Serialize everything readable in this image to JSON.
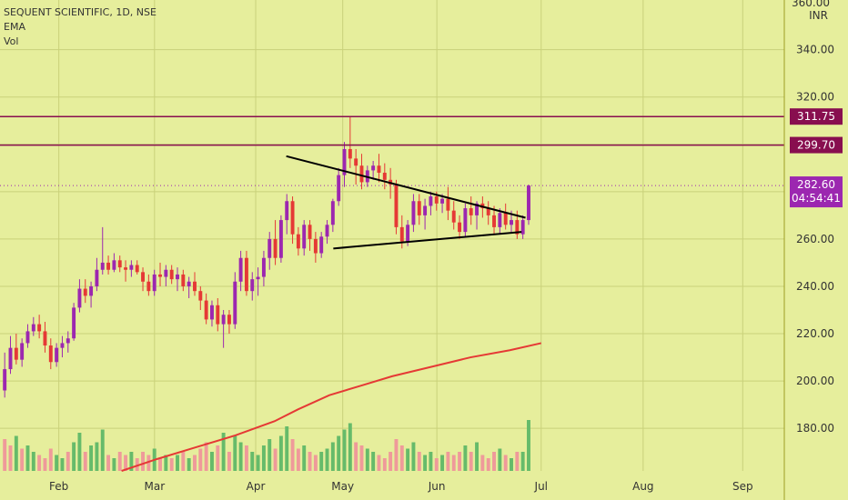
{
  "legend": {
    "symbol": "SEQUENT SCIENTIFIC, 1D, NSE",
    "indicator_1": "EMA",
    "indicator_2": "Vol"
  },
  "axis": {
    "currency": "INR",
    "top_partial": "360.00"
  },
  "colors": {
    "background": "#e6ee9c",
    "up_candle": "#9c27b0",
    "down_candle": "#e53935",
    "up_volume": "#66bb6a",
    "down_volume": "#ef9a9a",
    "ema": "#e53935",
    "level_line": "#880e4f",
    "trendline": "#000000",
    "price_label": "#9c27b0"
  },
  "price_labels": {
    "current_price": "282.60",
    "countdown": "04:54:41",
    "level_1": "311.75",
    "level_2": "299.70"
  },
  "chart_data": {
    "type": "candlestick",
    "title": "SEQUENT SCIENTIFIC, 1D, NSE",
    "y_ticks": [
      "180.00",
      "200.00",
      "220.00",
      "240.00",
      "260.00",
      "280.00",
      "300.00",
      "320.00",
      "340.00"
    ],
    "x_ticks": [
      "Feb",
      "Mar",
      "Apr",
      "May",
      "Jun",
      "Jul",
      "Aug",
      "Sep"
    ],
    "ylim": [
      162,
      361
    ],
    "horizontal_levels": [
      311.75,
      299.7
    ],
    "candles": [
      [
        196,
        212,
        193,
        205
      ],
      [
        205,
        219,
        203,
        214
      ],
      [
        214,
        220,
        207,
        209
      ],
      [
        209,
        218,
        206,
        216
      ],
      [
        216,
        224,
        214,
        221
      ],
      [
        221,
        227,
        219,
        224
      ],
      [
        224,
        228,
        218,
        221
      ],
      [
        221,
        225,
        212,
        215
      ],
      [
        215,
        218,
        205,
        208
      ],
      [
        208,
        216,
        206,
        214
      ],
      [
        214,
        219,
        210,
        216
      ],
      [
        216,
        221,
        212,
        218
      ],
      [
        218,
        233,
        217,
        231
      ],
      [
        231,
        243,
        229,
        239
      ],
      [
        239,
        243,
        233,
        236
      ],
      [
        236,
        242,
        231,
        240
      ],
      [
        240,
        252,
        238,
        247
      ],
      [
        247,
        265,
        245,
        250
      ],
      [
        250,
        253,
        245,
        247
      ],
      [
        247,
        254,
        246,
        251
      ],
      [
        251,
        253,
        246,
        248
      ],
      [
        248,
        251,
        242,
        247
      ],
      [
        247,
        251,
        244,
        249
      ],
      [
        249,
        251,
        245,
        246
      ],
      [
        246,
        248,
        238,
        242
      ],
      [
        242,
        245,
        236,
        238
      ],
      [
        238,
        247,
        236,
        245
      ],
      [
        245,
        250,
        240,
        244
      ],
      [
        244,
        249,
        240,
        247
      ],
      [
        247,
        249,
        241,
        243
      ],
      [
        243,
        248,
        238,
        245
      ],
      [
        245,
        247,
        238,
        240
      ],
      [
        240,
        244,
        235,
        242
      ],
      [
        242,
        246,
        236,
        238
      ],
      [
        238,
        240,
        230,
        234
      ],
      [
        234,
        237,
        224,
        226
      ],
      [
        226,
        234,
        223,
        232
      ],
      [
        232,
        235,
        221,
        224
      ],
      [
        224,
        230,
        214,
        228
      ],
      [
        228,
        230,
        220,
        224
      ],
      [
        224,
        246,
        222,
        242
      ],
      [
        242,
        255,
        238,
        252
      ],
      [
        252,
        255,
        236,
        238
      ],
      [
        238,
        246,
        234,
        243
      ],
      [
        243,
        248,
        236,
        244
      ],
      [
        244,
        255,
        240,
        252
      ],
      [
        252,
        263,
        247,
        260
      ],
      [
        260,
        268,
        249,
        252
      ],
      [
        252,
        270,
        250,
        268
      ],
      [
        268,
        279,
        262,
        276
      ],
      [
        276,
        278,
        258,
        262
      ],
      [
        262,
        265,
        253,
        256
      ],
      [
        256,
        268,
        253,
        266
      ],
      [
        266,
        268,
        255,
        260
      ],
      [
        260,
        263,
        250,
        254
      ],
      [
        254,
        263,
        252,
        261
      ],
      [
        261,
        268,
        258,
        266
      ],
      [
        266,
        277,
        263,
        276
      ],
      [
        276,
        290,
        274,
        287
      ],
      [
        287,
        301,
        282,
        298
      ],
      [
        298,
        312,
        290,
        294
      ],
      [
        294,
        298,
        283,
        291
      ],
      [
        291,
        296,
        281,
        284
      ],
      [
        284,
        291,
        282,
        289
      ],
      [
        289,
        293,
        285,
        291
      ],
      [
        291,
        296,
        284,
        288
      ],
      [
        288,
        292,
        281,
        285
      ],
      [
        285,
        290,
        277,
        283
      ],
      [
        283,
        285,
        262,
        265
      ],
      [
        265,
        270,
        256,
        259
      ],
      [
        259,
        268,
        257,
        266
      ],
      [
        266,
        279,
        263,
        276
      ],
      [
        276,
        279,
        266,
        270
      ],
      [
        270,
        277,
        264,
        274
      ],
      [
        274,
        280,
        270,
        278
      ],
      [
        278,
        280,
        272,
        275
      ],
      [
        275,
        279,
        271,
        277
      ],
      [
        277,
        282,
        268,
        272
      ],
      [
        272,
        276,
        264,
        267
      ],
      [
        267,
        270,
        260,
        263
      ],
      [
        263,
        275,
        261,
        273
      ],
      [
        273,
        278,
        266,
        270
      ],
      [
        270,
        276,
        264,
        275
      ],
      [
        275,
        278,
        269,
        273
      ],
      [
        273,
        276,
        266,
        270
      ],
      [
        270,
        274,
        262,
        265
      ],
      [
        265,
        273,
        262,
        271
      ],
      [
        271,
        275,
        264,
        266
      ],
      [
        266,
        272,
        263,
        268
      ],
      [
        268,
        272,
        260,
        262
      ],
      [
        262,
        270,
        260,
        268
      ],
      [
        268,
        283,
        266,
        282.6
      ]
    ],
    "volumes": [
      [
        0.5,
        0
      ],
      [
        0.4,
        0
      ],
      [
        0.55,
        1
      ],
      [
        0.35,
        0
      ],
      [
        0.4,
        1
      ],
      [
        0.3,
        1
      ],
      [
        0.25,
        0
      ],
      [
        0.2,
        0
      ],
      [
        0.35,
        0
      ],
      [
        0.25,
        1
      ],
      [
        0.2,
        1
      ],
      [
        0.3,
        0
      ],
      [
        0.45,
        1
      ],
      [
        0.6,
        1
      ],
      [
        0.3,
        0
      ],
      [
        0.4,
        1
      ],
      [
        0.45,
        1
      ],
      [
        0.65,
        1
      ],
      [
        0.25,
        0
      ],
      [
        0.2,
        1
      ],
      [
        0.3,
        0
      ],
      [
        0.25,
        0
      ],
      [
        0.3,
        1
      ],
      [
        0.2,
        0
      ],
      [
        0.3,
        0
      ],
      [
        0.25,
        0
      ],
      [
        0.35,
        1
      ],
      [
        0.2,
        0
      ],
      [
        0.25,
        1
      ],
      [
        0.2,
        0
      ],
      [
        0.25,
        1
      ],
      [
        0.3,
        0
      ],
      [
        0.2,
        1
      ],
      [
        0.25,
        0
      ],
      [
        0.35,
        0
      ],
      [
        0.45,
        0
      ],
      [
        0.3,
        1
      ],
      [
        0.4,
        0
      ],
      [
        0.6,
        1
      ],
      [
        0.3,
        0
      ],
      [
        0.55,
        1
      ],
      [
        0.45,
        1
      ],
      [
        0.4,
        0
      ],
      [
        0.3,
        1
      ],
      [
        0.25,
        1
      ],
      [
        0.4,
        1
      ],
      [
        0.5,
        1
      ],
      [
        0.35,
        0
      ],
      [
        0.55,
        1
      ],
      [
        0.7,
        1
      ],
      [
        0.5,
        0
      ],
      [
        0.35,
        0
      ],
      [
        0.4,
        1
      ],
      [
        0.3,
        0
      ],
      [
        0.25,
        0
      ],
      [
        0.3,
        1
      ],
      [
        0.35,
        1
      ],
      [
        0.45,
        1
      ],
      [
        0.55,
        1
      ],
      [
        0.65,
        1
      ],
      [
        0.75,
        1
      ],
      [
        0.45,
        0
      ],
      [
        0.4,
        0
      ],
      [
        0.35,
        1
      ],
      [
        0.3,
        1
      ],
      [
        0.25,
        0
      ],
      [
        0.2,
        0
      ],
      [
        0.3,
        0
      ],
      [
        0.5,
        0
      ],
      [
        0.4,
        0
      ],
      [
        0.35,
        1
      ],
      [
        0.45,
        1
      ],
      [
        0.3,
        0
      ],
      [
        0.25,
        1
      ],
      [
        0.3,
        1
      ],
      [
        0.2,
        0
      ],
      [
        0.25,
        1
      ],
      [
        0.3,
        0
      ],
      [
        0.25,
        0
      ],
      [
        0.3,
        0
      ],
      [
        0.4,
        1
      ],
      [
        0.3,
        0
      ],
      [
        0.45,
        1
      ],
      [
        0.25,
        0
      ],
      [
        0.2,
        0
      ],
      [
        0.3,
        0
      ],
      [
        0.35,
        1
      ],
      [
        0.25,
        0
      ],
      [
        0.2,
        1
      ],
      [
        0.3,
        0
      ],
      [
        0.3,
        1
      ],
      [
        0.8,
        1
      ]
    ],
    "ema": [
      [
        0.155,
        162
      ],
      [
        0.2,
        167
      ],
      [
        0.25,
        172
      ],
      [
        0.3,
        177
      ],
      [
        0.35,
        183
      ],
      [
        0.38,
        188
      ],
      [
        0.42,
        194
      ],
      [
        0.46,
        198
      ],
      [
        0.5,
        202
      ],
      [
        0.55,
        206
      ],
      [
        0.6,
        210
      ],
      [
        0.65,
        213
      ],
      [
        0.69,
        216
      ]
    ],
    "trendlines": [
      [
        [
          0.365,
          295
        ],
        [
          0.67,
          269
        ]
      ],
      [
        [
          0.425,
          256
        ],
        [
          0.665,
          263
        ]
      ]
    ]
  }
}
